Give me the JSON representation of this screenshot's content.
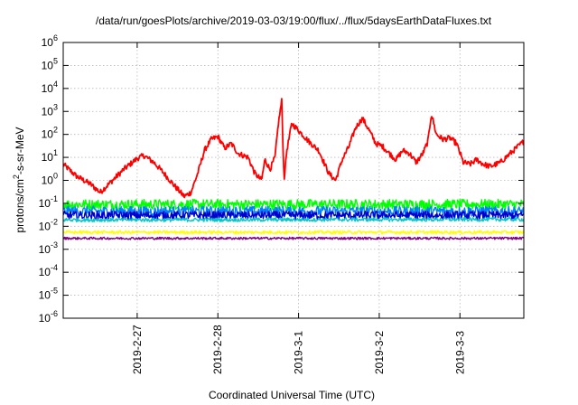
{
  "chart_data": {
    "type": "line",
    "title": "/data/run/goesPlots/archive/2019-03-03/19:00/flux/../flux/5daysEarthDataFluxes.txt",
    "xlabel": "Coordinated Universal Time (UTC)",
    "ylabel_base": "protons/cm",
    "ylabel_sup": "2",
    "ylabel_rest": "-s-sr-MeV",
    "y_scale": "log",
    "ylim": [
      1e-06,
      1000000
    ],
    "y_ticks": [
      {
        "base": "10",
        "exp": "-6",
        "value": 1e-06
      },
      {
        "base": "10",
        "exp": "-5",
        "value": 1e-05
      },
      {
        "base": "10",
        "exp": "-4",
        "value": 0.0001
      },
      {
        "base": "10",
        "exp": "-3",
        "value": 0.001
      },
      {
        "base": "10",
        "exp": "-2",
        "value": 0.01
      },
      {
        "base": "10",
        "exp": "-1",
        "value": 0.1
      },
      {
        "base": "10",
        "exp": "0",
        "value": 1
      },
      {
        "base": "10",
        "exp": "1",
        "value": 10
      },
      {
        "base": "10",
        "exp": "2",
        "value": 100
      },
      {
        "base": "10",
        "exp": "3",
        "value": 1000
      },
      {
        "base": "10",
        "exp": "4",
        "value": 10000
      },
      {
        "base": "10",
        "exp": "5",
        "value": 100000
      },
      {
        "base": "10",
        "exp": "6",
        "value": 1000000
      }
    ],
    "xlim": [
      "2019-02-26T02:00",
      "2019-03-03T19:00"
    ],
    "x_ticks": [
      {
        "label": "2019-2-27",
        "value": "2019-02-27T00:00"
      },
      {
        "label": "2019-2-28",
        "value": "2019-02-28T00:00"
      },
      {
        "label": "2019-3-1",
        "value": "2019-03-01T00:00"
      },
      {
        "label": "2019-3-2",
        "value": "2019-03-02T00:00"
      },
      {
        "label": "2019-3-3",
        "value": "2019-03-03T00:00"
      }
    ],
    "grid": true,
    "series": [
      {
        "color": "#ff0000",
        "noise": 0.12,
        "points": [
          [
            "2019-02-26T02:00",
            5
          ],
          [
            "2019-02-26T06:00",
            1.5
          ],
          [
            "2019-02-26T10:00",
            0.7
          ],
          [
            "2019-02-26T13:00",
            0.3
          ],
          [
            "2019-02-26T16:00",
            0.8
          ],
          [
            "2019-02-26T20:00",
            3
          ],
          [
            "2019-02-27T00:00",
            9
          ],
          [
            "2019-02-27T02:00",
            12
          ],
          [
            "2019-02-27T05:00",
            6
          ],
          [
            "2019-02-27T08:00",
            2
          ],
          [
            "2019-02-27T11:00",
            0.6
          ],
          [
            "2019-02-27T14:00",
            0.2
          ],
          [
            "2019-02-27T16:00",
            0.3
          ],
          [
            "2019-02-27T18:00",
            2
          ],
          [
            "2019-02-27T20:00",
            20
          ],
          [
            "2019-02-27T22:00",
            60
          ],
          [
            "2019-02-28T00:00",
            80
          ],
          [
            "2019-02-28T02:00",
            25
          ],
          [
            "2019-02-28T04:00",
            40
          ],
          [
            "2019-02-28T06:00",
            15
          ],
          [
            "2019-02-28T09:00",
            10
          ],
          [
            "2019-02-28T11:00",
            2
          ],
          [
            "2019-02-28T13:00",
            1
          ],
          [
            "2019-02-28T14:00",
            8
          ],
          [
            "2019-02-28T15:30",
            3
          ],
          [
            "2019-02-28T17:00",
            10
          ],
          [
            "2019-02-28T18:00",
            300
          ],
          [
            "2019-02-28T19:00",
            3000
          ],
          [
            "2019-02-28T19:40",
            1
          ],
          [
            "2019-02-28T20:30",
            20
          ],
          [
            "2019-02-28T22:00",
            300
          ],
          [
            "2019-03-01T00:00",
            150
          ],
          [
            "2019-03-01T03:00",
            50
          ],
          [
            "2019-03-01T06:00",
            20
          ],
          [
            "2019-03-01T09:00",
            2
          ],
          [
            "2019-03-01T11:00",
            1
          ],
          [
            "2019-03-01T13:00",
            8
          ],
          [
            "2019-03-01T15:00",
            30
          ],
          [
            "2019-03-01T17:00",
            200
          ],
          [
            "2019-03-01T19:00",
            500
          ],
          [
            "2019-03-01T21:00",
            150
          ],
          [
            "2019-03-01T23:00",
            40
          ],
          [
            "2019-03-02T01:00",
            30
          ],
          [
            "2019-03-02T03:00",
            15
          ],
          [
            "2019-03-02T05:00",
            8
          ],
          [
            "2019-03-02T07:00",
            20
          ],
          [
            "2019-03-02T09:00",
            15
          ],
          [
            "2019-03-02T11:00",
            6
          ],
          [
            "2019-03-02T13:00",
            15
          ],
          [
            "2019-03-02T14:30",
            50
          ],
          [
            "2019-03-02T15:30",
            800
          ],
          [
            "2019-03-02T17:00",
            100
          ],
          [
            "2019-03-02T19:00",
            60
          ],
          [
            "2019-03-02T21:00",
            70
          ],
          [
            "2019-03-02T23:00",
            40
          ],
          [
            "2019-03-03T01:00",
            6
          ],
          [
            "2019-03-03T03:00",
            5
          ],
          [
            "2019-03-03T05:00",
            8
          ],
          [
            "2019-03-03T07:00",
            5
          ],
          [
            "2019-03-03T09:00",
            4
          ],
          [
            "2019-03-03T12:00",
            6
          ],
          [
            "2019-03-03T15:00",
            15
          ],
          [
            "2019-03-03T19:00",
            50
          ]
        ]
      },
      {
        "color": "#00ff00",
        "noise": 0.22,
        "points": [
          [
            "2019-02-26T02:00",
            0.09
          ],
          [
            "2019-03-03T19:00",
            0.09
          ]
        ]
      },
      {
        "color": "#0080ff",
        "noise": 0.22,
        "points": [
          [
            "2019-02-26T02:00",
            0.045
          ],
          [
            "2019-03-03T19:00",
            0.045
          ]
        ]
      },
      {
        "color": "#0000cc",
        "noise": 0.18,
        "points": [
          [
            "2019-02-26T02:00",
            0.03
          ],
          [
            "2019-03-03T19:00",
            0.03
          ]
        ]
      },
      {
        "color": "#00c8c8",
        "noise": 0.08,
        "points": [
          [
            "2019-02-26T02:00",
            0.019
          ],
          [
            "2019-03-03T19:00",
            0.02
          ]
        ]
      },
      {
        "color": "#ffff00",
        "noise": 0.07,
        "points": [
          [
            "2019-02-26T02:00",
            0.0055
          ],
          [
            "2019-03-03T19:00",
            0.0055
          ]
        ]
      },
      {
        "color": "#800080",
        "noise": 0.05,
        "points": [
          [
            "2019-02-26T02:00",
            0.003
          ],
          [
            "2019-03-03T19:00",
            0.003
          ]
        ]
      }
    ]
  }
}
